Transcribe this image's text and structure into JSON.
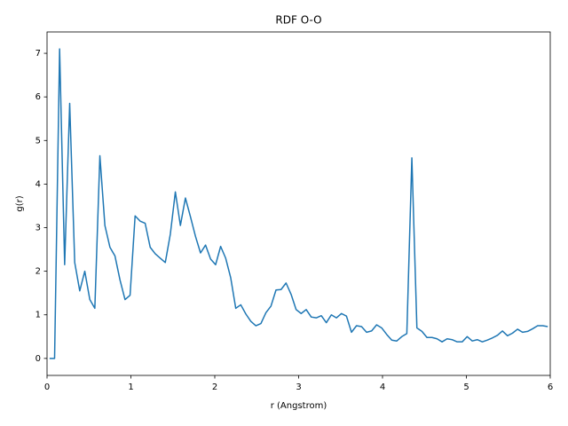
{
  "chart_data": {
    "type": "line",
    "title": "RDF O-O",
    "xlabel": "r (Angstrom)",
    "ylabel": "g(r)",
    "x": [
      0.03,
      0.09,
      0.15,
      0.21,
      0.27,
      0.33,
      0.39,
      0.45,
      0.51,
      0.57,
      0.63,
      0.69,
      0.75,
      0.81,
      0.87,
      0.93,
      0.99,
      1.05,
      1.11,
      1.17,
      1.23,
      1.29,
      1.35,
      1.41,
      1.47,
      1.53,
      1.59,
      1.65,
      1.71,
      1.77,
      1.83,
      1.89,
      1.95,
      2.01,
      2.07,
      2.13,
      2.19,
      2.25,
      2.31,
      2.37,
      2.43,
      2.49,
      2.55,
      2.61,
      2.67,
      2.73,
      2.79,
      2.85,
      2.91,
      2.97,
      3.03,
      3.09,
      3.15,
      3.21,
      3.27,
      3.33,
      3.39,
      3.45,
      3.51,
      3.57,
      3.63,
      3.69,
      3.75,
      3.81,
      3.87,
      3.93,
      3.99,
      4.05,
      4.11,
      4.17,
      4.23,
      4.29,
      4.35,
      4.41,
      4.47,
      4.53,
      4.59,
      4.65,
      4.71,
      4.77,
      4.83,
      4.89,
      4.95,
      5.01,
      5.07,
      5.13,
      5.19,
      5.25,
      5.31,
      5.37,
      5.43,
      5.49,
      5.55,
      5.61,
      5.67,
      5.73,
      5.79,
      5.85,
      5.91,
      5.97
    ],
    "series": [
      {
        "color": "#1f77b4",
        "values": [
          0,
          0,
          7.1,
          2.15,
          5.85,
          2.2,
          1.55,
          2.0,
          1.35,
          1.15,
          4.65,
          3.05,
          2.55,
          2.35,
          1.8,
          1.35,
          1.45,
          3.27,
          3.15,
          3.1,
          2.55,
          2.4,
          2.3,
          2.2,
          2.85,
          3.82,
          3.05,
          3.68,
          3.25,
          2.8,
          2.42,
          2.6,
          2.28,
          2.15,
          2.57,
          2.3,
          1.85,
          1.15,
          1.23,
          1.02,
          0.85,
          0.75,
          0.8,
          1.05,
          1.2,
          1.57,
          1.58,
          1.73,
          1.47,
          1.12,
          1.03,
          1.12,
          0.95,
          0.93,
          0.98,
          0.82,
          1.0,
          0.93,
          1.03,
          0.97,
          0.6,
          0.75,
          0.73,
          0.6,
          0.63,
          0.77,
          0.7,
          0.55,
          0.42,
          0.4,
          0.5,
          0.57,
          4.6,
          0.7,
          0.62,
          0.48,
          0.48,
          0.45,
          0.38,
          0.45,
          0.43,
          0.38,
          0.38,
          0.5,
          0.4,
          0.43,
          0.38,
          0.42,
          0.47,
          0.53,
          0.63,
          0.52,
          0.58,
          0.67,
          0.6,
          0.62,
          0.68,
          0.75,
          0.75,
          0.73
        ]
      }
    ],
    "xlim": [
      0,
      6
    ],
    "xticks": [
      0,
      1,
      2,
      3,
      4,
      5,
      6
    ],
    "ylim": [
      -0.39,
      7.49
    ],
    "yticks": [
      0,
      1,
      2,
      3,
      4,
      5,
      6,
      7
    ]
  }
}
